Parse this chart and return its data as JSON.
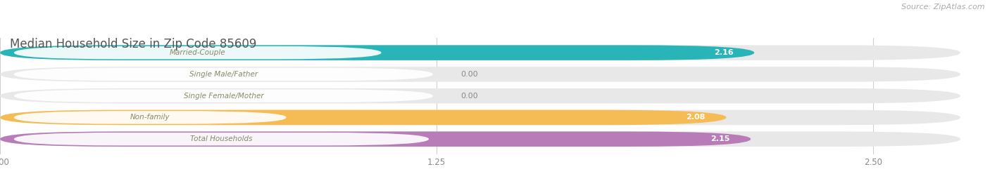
{
  "title": "Median Household Size in Zip Code 85609",
  "source": "Source: ZipAtlas.com",
  "categories": [
    "Married-Couple",
    "Single Male/Father",
    "Single Female/Mother",
    "Non-family",
    "Total Households"
  ],
  "values": [
    2.16,
    0.0,
    0.0,
    2.08,
    2.15
  ],
  "bar_colors": [
    "#29b5b8",
    "#a8c4e8",
    "#f4a0b8",
    "#f5bc55",
    "#b87db8"
  ],
  "bar_bg_colors": [
    "#e8f5f5",
    "#eef3fb",
    "#fdf0f3",
    "#fdf5e8",
    "#f5eef8"
  ],
  "row_bg_color": "#eeeeee",
  "xlim_max": 2.75,
  "xticks": [
    0.0,
    1.25,
    2.5
  ],
  "xtick_labels": [
    "0.00",
    "1.25",
    "2.50"
  ],
  "title_color": "#555555",
  "source_color": "#999999",
  "value_color_white": "#ffffff",
  "value_color_dark": "#888888",
  "label_text_color": "#b8a060",
  "figsize": [
    14.06,
    2.68
  ],
  "dpi": 100
}
